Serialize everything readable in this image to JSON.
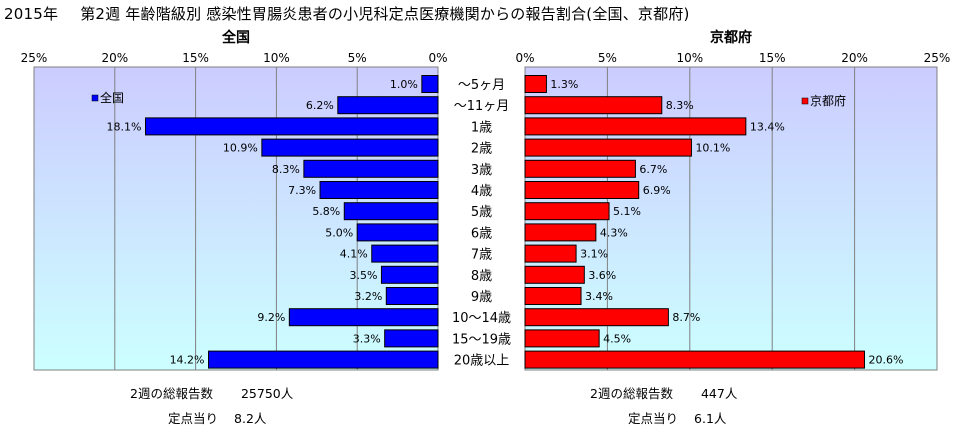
{
  "title": {
    "year": "2015年",
    "text": "第2週 年齢階級別 感染性胃腸炎患者の小児科定点医療機関からの報告割合(全国、京都府)"
  },
  "chart_data": {
    "type": "bar",
    "orientation": "horizontal-butterfly",
    "categories": [
      "～5ヶ月",
      "～11ヶ月",
      "1歳",
      "2歳",
      "3歳",
      "4歳",
      "5歳",
      "6歳",
      "7歳",
      "8歳",
      "9歳",
      "10～14歳",
      "15～19歳",
      "20歳以上"
    ],
    "xlim": [
      0,
      25
    ],
    "x_ticks": [
      0,
      5,
      10,
      15,
      20,
      25
    ],
    "tick_suffix": "%",
    "grid": true,
    "panels": [
      {
        "title": "全国",
        "legend": "全国",
        "legend_position": "top-left",
        "color": "#0000ff",
        "direction": "left",
        "values": [
          1.0,
          6.2,
          18.1,
          10.9,
          8.3,
          7.3,
          5.8,
          5.0,
          4.1,
          3.5,
          3.2,
          9.2,
          3.3,
          14.2
        ],
        "value_labels": [
          "1.0%",
          "6.2%",
          "18.1%",
          "10.9%",
          "8.3%",
          "7.3%",
          "5.8%",
          "5.0%",
          "4.1%",
          "3.5%",
          "3.2%",
          "9.2%",
          "3.3%",
          "14.2%"
        ]
      },
      {
        "title": "京都府",
        "legend": "京都府",
        "legend_position": "top-right",
        "color": "#ff0000",
        "direction": "right",
        "values": [
          1.3,
          8.3,
          13.4,
          10.1,
          6.7,
          6.9,
          5.1,
          4.3,
          3.1,
          3.6,
          3.4,
          8.7,
          4.5,
          20.6
        ],
        "value_labels": [
          "1.3%",
          "8.3%",
          "13.4%",
          "10.1%",
          "6.7%",
          "6.9%",
          "5.1%",
          "4.3%",
          "3.1%",
          "3.6%",
          "3.4%",
          "8.7%",
          "4.5%",
          "20.6%"
        ]
      }
    ],
    "plot_background": {
      "top": "#ccccff",
      "bottom": "#ccffff"
    }
  },
  "footer": {
    "national": {
      "total_label": "2週の総報告数",
      "total_value": "25750人",
      "per_label": "定点当り",
      "per_value": "8.2人"
    },
    "kyoto": {
      "total_label": "2週の総報告数",
      "total_value": "447人",
      "per_label": "定点当り",
      "per_value": "6.1人"
    }
  }
}
